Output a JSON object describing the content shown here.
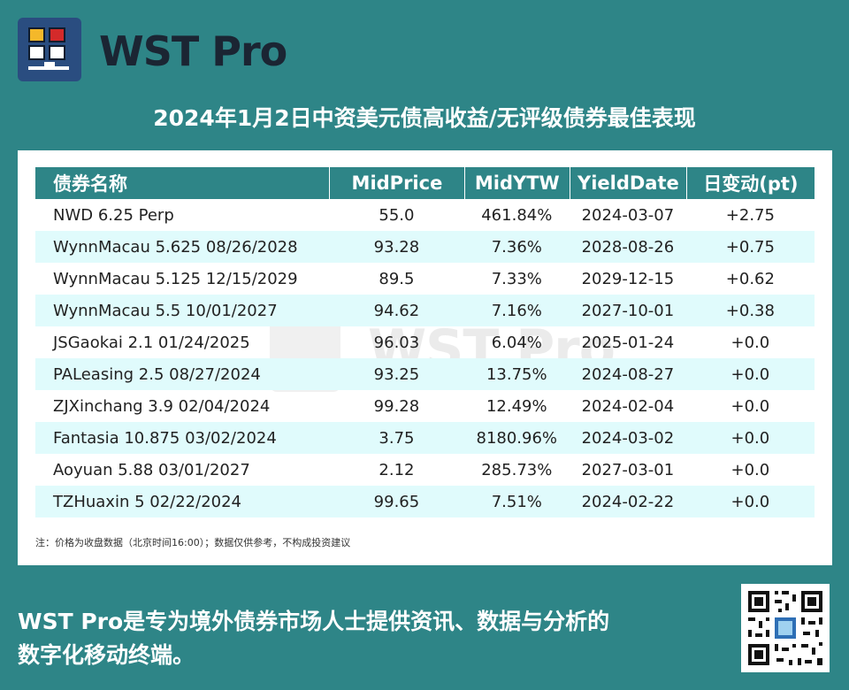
{
  "brand": {
    "name": "WST Pro",
    "colors": {
      "teal": "#2e8587",
      "logo_bg": "#2a4d80",
      "yellow": "#f4b82a",
      "red": "#d42a2a"
    },
    "logo_icon": "grid-monitor-icon"
  },
  "title": "2024年1月2日中资美元债高收益/无评级债券最佳表现",
  "table": {
    "headers": [
      "债券名称",
      "MidPrice",
      "MidYTW",
      "YieldDate",
      "日变动(pt)"
    ],
    "rows": [
      [
        "NWD 6.25 Perp",
        "55.0",
        "461.84%",
        "2024-03-07",
        "+2.75"
      ],
      [
        "WynnMacau 5.625 08/26/2028",
        "93.28",
        "7.36%",
        "2028-08-26",
        "+0.75"
      ],
      [
        "WynnMacau 5.125 12/15/2029",
        "89.5",
        "7.33%",
        "2029-12-15",
        "+0.62"
      ],
      [
        "WynnMacau 5.5 10/01/2027",
        "94.62",
        "7.16%",
        "2027-10-01",
        "+0.38"
      ],
      [
        "JSGaokai 2.1 01/24/2025",
        "96.03",
        "6.04%",
        "2025-01-24",
        "+0.0"
      ],
      [
        "PALeasing 2.5 08/27/2024",
        "93.25",
        "13.75%",
        "2024-08-27",
        "+0.0"
      ],
      [
        "ZJXinchang 3.9 02/04/2024",
        "99.28",
        "12.49%",
        "2024-02-04",
        "+0.0"
      ],
      [
        "Fantasia 10.875 03/02/2024",
        "3.75",
        "8180.96%",
        "2024-03-02",
        "+0.0"
      ],
      [
        "Aoyuan 5.88 03/01/2027",
        "2.12",
        "285.73%",
        "2027-03-01",
        "+0.0"
      ],
      [
        "TZHuaxin 5 02/22/2024",
        "99.65",
        "7.51%",
        "2024-02-22",
        "+0.0"
      ]
    ]
  },
  "note": "注：价格为收盘数据（北京时间16:00）；数据仅供参考，不构成投资建议",
  "watermark": "WST Pro",
  "footer": {
    "line1": "WST Pro是专为境外债券市场人士提供资讯、数据与分析的",
    "line2": "数字化移动终端。"
  },
  "qr_icon": "qr-code-icon"
}
